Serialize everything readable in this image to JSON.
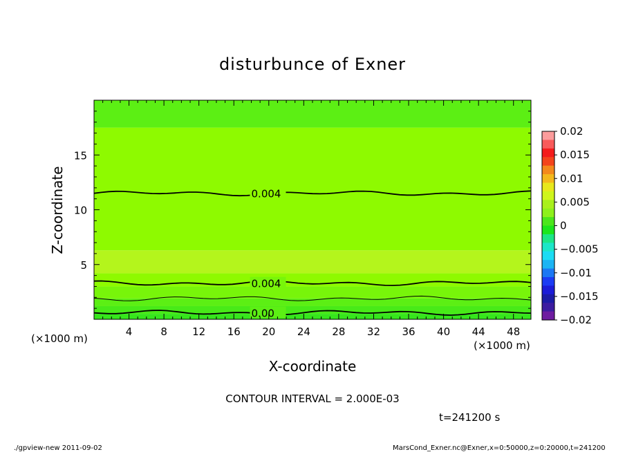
{
  "chart_data": {
    "type": "heatmap",
    "title": "disturbunce of Exner",
    "xlabel": "X-coordinate",
    "ylabel": "Z-coordinate",
    "x_unit": "(×1000 m)",
    "y_unit": "(×1000 m)",
    "xlim": [
      0,
      50
    ],
    "ylim": [
      0,
      20
    ],
    "x_ticks": [
      4,
      8,
      12,
      16,
      20,
      24,
      28,
      32,
      36,
      40,
      44,
      48
    ],
    "y_ticks": [
      5,
      10,
      15
    ],
    "bands": [
      {
        "z_from": 0.0,
        "z_to": 0.5,
        "value": 0.001
      },
      {
        "z_from": 0.5,
        "z_to": 1.2,
        "value": 0.002
      },
      {
        "z_from": 1.2,
        "z_to": 1.9,
        "value": 0.003
      },
      {
        "z_from": 1.9,
        "z_to": 3.0,
        "value": 0.004
      },
      {
        "z_from": 3.0,
        "z_to": 4.2,
        "value": 0.005
      },
      {
        "z_from": 4.2,
        "z_to": 6.3,
        "value": 0.0058
      },
      {
        "z_from": 6.3,
        "z_to": 17.5,
        "value": 0.0045
      },
      {
        "z_from": 17.5,
        "z_to": 20.0,
        "value": 0.003
      }
    ],
    "contours": [
      {
        "level": "0.004",
        "label": "0.004",
        "z": 11.5,
        "label_x": 18
      },
      {
        "level": "0.004",
        "label": "0.004",
        "z": 3.3,
        "label_x": 18
      },
      {
        "level": "0.002",
        "label": "",
        "z": 1.9,
        "label_x": null
      },
      {
        "level": "0.00",
        "label": "0.00",
        "z": 0.6,
        "label_x": 18
      }
    ],
    "colorbar": {
      "ticks": [
        "0.02",
        "0.015",
        "0.01",
        "0.005",
        "0",
        "−0.005",
        "−0.01",
        "−0.015",
        "−0.02"
      ],
      "colors": [
        "#fc9c9c",
        "#f85a5a",
        "#f41c1c",
        "#f4441c",
        "#f4891c",
        "#f4b81c",
        "#e8e81c",
        "#cff51c",
        "#a9f01c",
        "#8ef01c",
        "#4ce61c",
        "#1ce61c",
        "#1ce686",
        "#1ce6c8",
        "#1cdcf4",
        "#1cb4f4",
        "#1c78f4",
        "#1c3cf4",
        "#1c1cd8",
        "#1c1ca6",
        "#3c1ca0",
        "#6e1ca0"
      ]
    }
  },
  "footer": {
    "contour_interval": "CONTOUR INTERVAL = 2.000E-03",
    "time": "t=241200 s",
    "left_note": "./gpview-new 2011-09-02",
    "right_note": "MarsCond_Exner.nc@Exner,x=0:50000,z=0:20000,t=241200"
  },
  "colors": {
    "green_base": "#8efa00",
    "band_low": "#36e61c",
    "band_mid": "#5cef14",
    "band_high": "#b4f51c",
    "band_top": "#6ef414"
  }
}
